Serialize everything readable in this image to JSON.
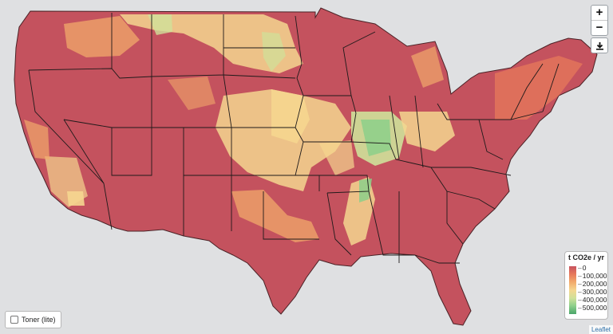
{
  "map": {
    "base_color": "#c8535f",
    "border_color": "#3d1f22",
    "state_line_color": "#1e1a1a"
  },
  "controls": {
    "zoom_in": "+",
    "zoom_out": "−",
    "download_icon": "download-icon"
  },
  "legend": {
    "title": "t CO2e / yr",
    "ticks": [
      "0",
      "100,000",
      "200,000",
      "300,000",
      "400,000",
      "500,000"
    ],
    "colors": [
      "#c8535f",
      "#e77a5b",
      "#f2a96b",
      "#f5d68f",
      "#cfe19a",
      "#8ccf8a",
      "#4aa56a"
    ]
  },
  "layer_toggle": {
    "label": "Toner (lite)",
    "checked": false
  },
  "attribution": "Leaflet"
}
